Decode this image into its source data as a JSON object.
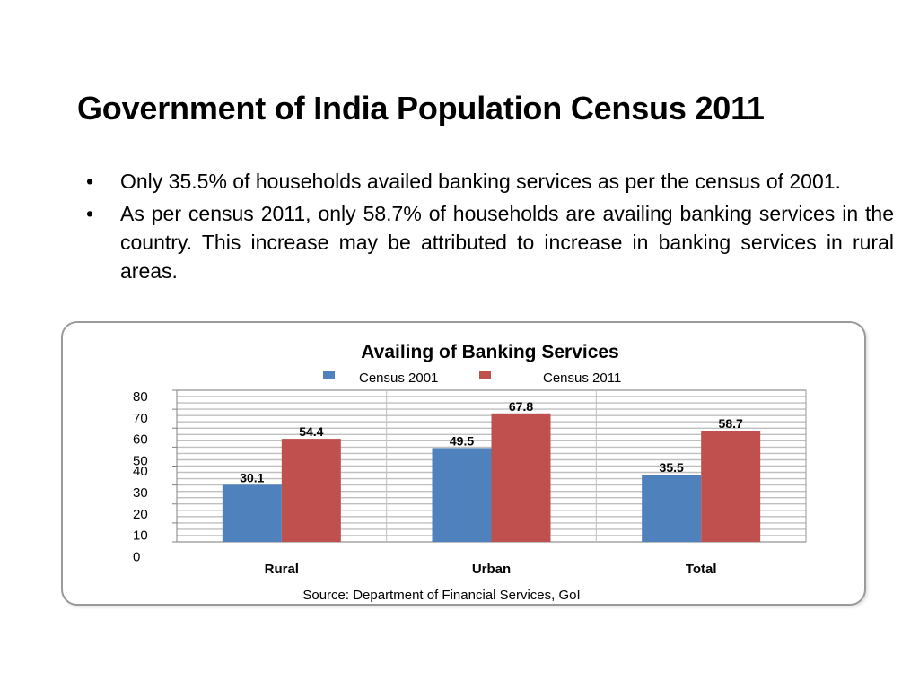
{
  "slide": {
    "title": "Government of India Population Census 2011",
    "bullets": [
      {
        "symbol": "•",
        "text": "Only 35.5% of households availed banking services as per the census of 2001."
      },
      {
        "symbol": "•",
        "text": "As per census 2011, only 58.7% of households are availing banking services in the country. This increase may be attributed to increase in banking services in rural areas."
      }
    ]
  },
  "chart_data": {
    "type": "bar",
    "title": "Availing of Banking Services",
    "categories": [
      "Rural",
      "Urban",
      "Total"
    ],
    "series": [
      {
        "name": "Census 2001",
        "values": [
          30.1,
          49.5,
          35.5
        ],
        "color": "#4f81bd"
      },
      {
        "name": "Census 2011",
        "values": [
          54.4,
          67.8,
          58.7
        ],
        "color": "#c0504d"
      }
    ],
    "yticks": [
      "80",
      "70",
      "60",
      "50",
      "40",
      "30",
      "20",
      "10",
      "0"
    ],
    "ylim": [
      0,
      80
    ],
    "grid": true,
    "legend": "top",
    "source": "Source: Department of Financial Services, GoI"
  }
}
